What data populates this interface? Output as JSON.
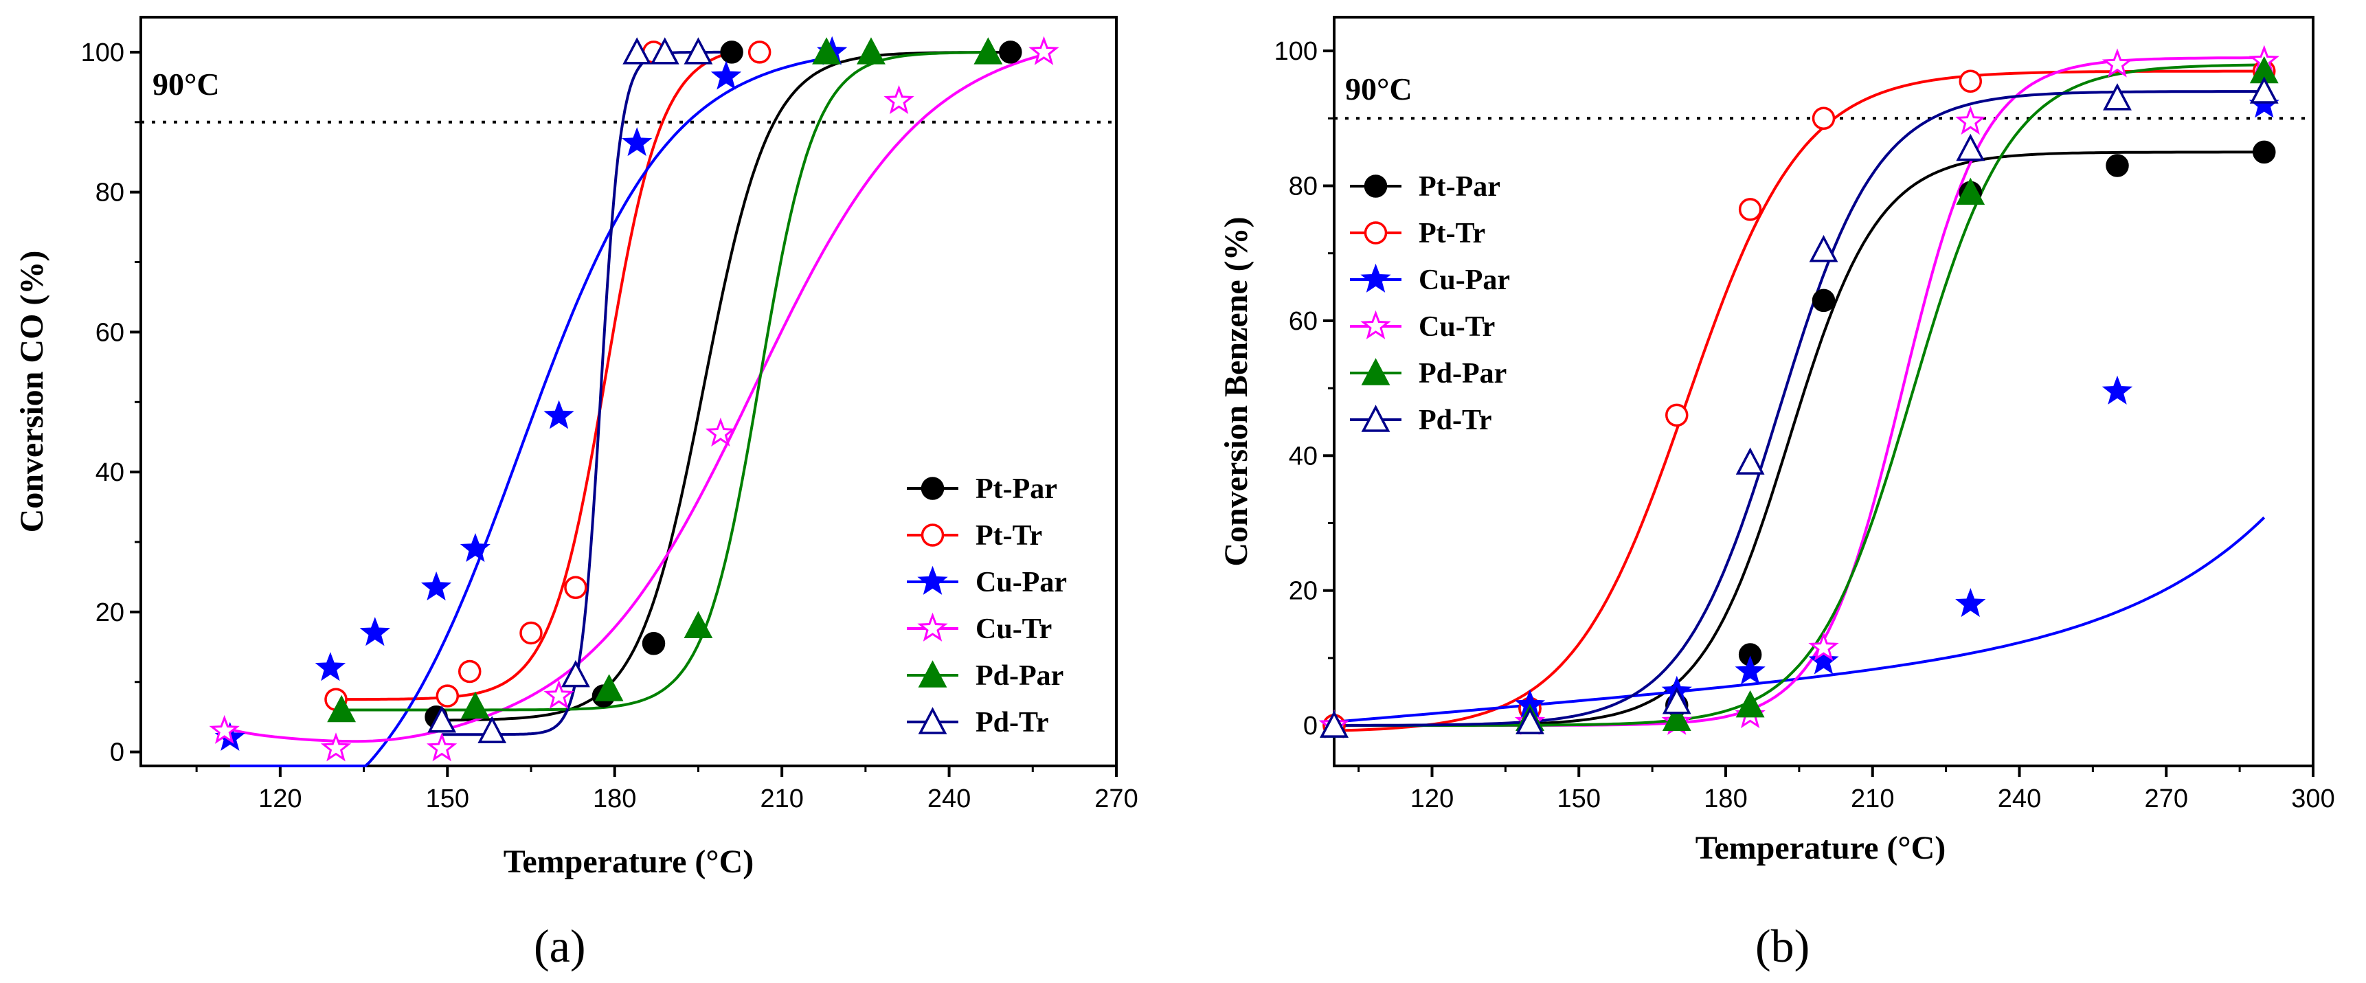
{
  "chart_data": [
    {
      "type": "line",
      "panel_label": "(a)",
      "xlabel": "Temperature (°C)",
      "ylabel": "Conversion CO (%)",
      "xlim": [
        95,
        270
      ],
      "ylim": [
        -2,
        105
      ],
      "xticks": [
        120,
        150,
        180,
        210,
        240,
        270
      ],
      "yticks": [
        0,
        20,
        40,
        60,
        80,
        100
      ],
      "reference_line": {
        "y": 90,
        "label": "90°C"
      },
      "legend_position": "bottom-right",
      "series": [
        {
          "name": "Pt-Par",
          "color": "#000000",
          "marker": "circle-filled",
          "x": [
            148,
            178,
            187,
            201,
            251
          ],
          "y": [
            5,
            8,
            15.5,
            100,
            100
          ],
          "curve": {
            "type": "sigmoid",
            "base": 4.5,
            "top": 100,
            "x0": 196,
            "k": 0.17,
            "xmin": 148,
            "xmax": 251
          }
        },
        {
          "name": "Pt-Tr",
          "color": "#ff0000",
          "marker": "circle-open",
          "x": [
            130,
            150,
            154,
            165,
            173,
            187,
            206
          ],
          "y": [
            7.5,
            8,
            11.5,
            17,
            23.5,
            100,
            100
          ],
          "curve": {
            "type": "sigmoid",
            "base": 7.5,
            "top": 101,
            "x0": 178.5,
            "k": 0.2,
            "xmin": 130,
            "xmax": 202
          }
        },
        {
          "name": "Cu-Par",
          "color": "#0000ff",
          "marker": "star-filled",
          "x": [
            111,
            129,
            137,
            148,
            155,
            170,
            184,
            200,
            219
          ],
          "y": [
            2,
            12,
            17,
            23.5,
            29,
            48,
            87,
            96.5,
            100
          ],
          "curve": {
            "type": "sigmoid",
            "base": -15,
            "top": 101,
            "x0": 163,
            "k": 0.075,
            "xmin": 111,
            "xmax": 219
          }
        },
        {
          "name": "Cu-Tr",
          "color": "#ff00ff",
          "marker": "star-open",
          "x": [
            110,
            130,
            149,
            170,
            199,
            231,
            257
          ],
          "y": [
            3,
            0.5,
            0.5,
            8,
            45.5,
            93,
            100
          ],
          "curve": {
            "type": "sigmoid-dip",
            "base": 1,
            "top": 103,
            "x0": 205,
            "k": 0.065,
            "xmin": 110,
            "xmax": 257
          }
        },
        {
          "name": "Pd-Par",
          "color": "#008000",
          "marker": "triangle-filled",
          "x": [
            131,
            155,
            179,
            195,
            218,
            226,
            247
          ],
          "y": [
            6,
            6.5,
            9,
            18,
            100,
            100,
            100
          ],
          "curve": {
            "type": "sigmoid",
            "base": 6,
            "top": 100,
            "x0": 206,
            "k": 0.2,
            "xmin": 131,
            "xmax": 247
          }
        },
        {
          "name": "Pd-Tr",
          "color": "#00008b",
          "marker": "triangle-open",
          "x": [
            149,
            158,
            173,
            184,
            189,
            195
          ],
          "y": [
            4.5,
            3,
            11,
            100,
            100,
            100
          ],
          "curve": {
            "type": "sigmoid",
            "base": 2.5,
            "top": 100,
            "x0": 177.5,
            "k": 0.55,
            "xmin": 149,
            "xmax": 200
          }
        }
      ]
    },
    {
      "type": "line",
      "panel_label": "(b)",
      "xlabel": "Temperature (°C)",
      "ylabel": "Conversion Benzene (%)",
      "xlim": [
        100,
        300
      ],
      "ylim": [
        -6,
        105
      ],
      "xticks": [
        120,
        150,
        180,
        210,
        240,
        270,
        300
      ],
      "yticks": [
        0,
        20,
        40,
        60,
        80,
        100
      ],
      "reference_line": {
        "y": 90,
        "label": "90°C"
      },
      "legend_position": "top-left",
      "series": [
        {
          "name": "Pt-Par",
          "color": "#000000",
          "marker": "circle-filled",
          "x": [
            100,
            140,
            170,
            185,
            200,
            230,
            260,
            290
          ],
          "y": [
            0,
            2.5,
            3,
            10.5,
            63,
            79,
            83,
            85
          ],
          "curve": {
            "type": "sigmoid",
            "base": 0,
            "top": 85,
            "x0": 193,
            "k": 0.11,
            "xmin": 100,
            "xmax": 290
          }
        },
        {
          "name": "Pt-Tr",
          "color": "#ff0000",
          "marker": "circle-open",
          "x": [
            100,
            140,
            170,
            185,
            200,
            230,
            290
          ],
          "y": [
            0,
            2.5,
            46,
            76.5,
            90,
            95.5,
            97
          ],
          "curve": {
            "type": "sigmoid",
            "base": -1,
            "top": 97,
            "x0": 172,
            "k": 0.085,
            "xmin": 100,
            "xmax": 290
          }
        },
        {
          "name": "Cu-Par",
          "color": "#0000ff",
          "marker": "star-filled",
          "x": [
            100,
            140,
            170,
            185,
            200,
            230,
            260,
            290
          ],
          "y": [
            0,
            3,
            5,
            8,
            9.5,
            18,
            49.5,
            92
          ],
          "curve": {
            "type": "exp-rise",
            "xmin": 100,
            "xmax": 290
          }
        },
        {
          "name": "Cu-Tr",
          "color": "#ff00ff",
          "marker": "star-open",
          "x": [
            100,
            140,
            170,
            185,
            200,
            230,
            260,
            290
          ],
          "y": [
            0,
            0.5,
            0.5,
            1.5,
            11.5,
            89.5,
            98,
            98.5
          ],
          "curve": {
            "type": "sigmoid",
            "base": 0,
            "top": 99,
            "x0": 216,
            "k": 0.12,
            "xmin": 100,
            "xmax": 290
          }
        },
        {
          "name": "Pd-Par",
          "color": "#008000",
          "marker": "triangle-filled",
          "x": [
            100,
            140,
            170,
            185,
            230,
            290
          ],
          "y": [
            0,
            1,
            1,
            3,
            79,
            97
          ],
          "curve": {
            "type": "sigmoid",
            "base": 0,
            "top": 98,
            "x0": 218,
            "k": 0.1,
            "xmin": 100,
            "xmax": 290
          }
        },
        {
          "name": "Pd-Tr",
          "color": "#00008b",
          "marker": "triangle-open",
          "x": [
            100,
            140,
            170,
            185,
            200,
            230,
            260,
            290
          ],
          "y": [
            0,
            0.5,
            3.5,
            39,
            70.5,
            85.5,
            93,
            94
          ],
          "curve": {
            "type": "sigmoid",
            "base": 0,
            "top": 94,
            "x0": 191,
            "k": 0.1,
            "xmin": 100,
            "xmax": 290
          }
        }
      ]
    }
  ]
}
